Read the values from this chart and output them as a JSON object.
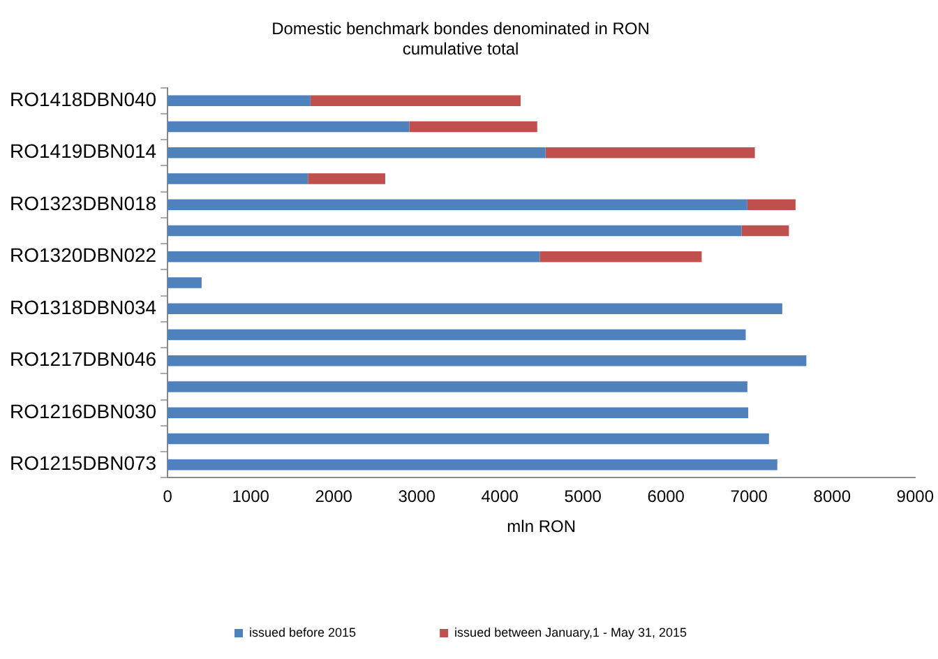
{
  "chart_data": {
    "type": "bar",
    "orientation": "horizontal",
    "stacked": true,
    "title": "Domestic benchmark bondes denominated in RON\ncumulative total",
    "xlabel": "mln RON",
    "categories": [
      "RO1418DBN040",
      null,
      "RO1419DBN014",
      null,
      "RO1323DBN018",
      null,
      "RO1320DBN022",
      null,
      "RO1318DBN034",
      null,
      "RO1217DBN046",
      null,
      "RO1216DBN030",
      null,
      "RO1215DBN073"
    ],
    "series": [
      {
        "name": "issued before 2015",
        "color": "#4f81bd",
        "values": [
          1720,
          2910,
          4550,
          1690,
          6980,
          6910,
          4480,
          410,
          7400,
          6960,
          7690,
          6980,
          6990,
          7240,
          7340
        ]
      },
      {
        "name": "issued between January,1 - May 31, 2015",
        "color": "#c0504d",
        "values": [
          2530,
          1540,
          2520,
          930,
          580,
          570,
          1950,
          null,
          null,
          null,
          null,
          null,
          null,
          null,
          null
        ]
      }
    ],
    "xlim": [
      0,
      9000
    ],
    "xticks": [
      0,
      1000,
      2000,
      3000,
      4000,
      5000,
      6000,
      7000,
      8000,
      9000
    ],
    "grid": false,
    "legend": "bottom"
  }
}
